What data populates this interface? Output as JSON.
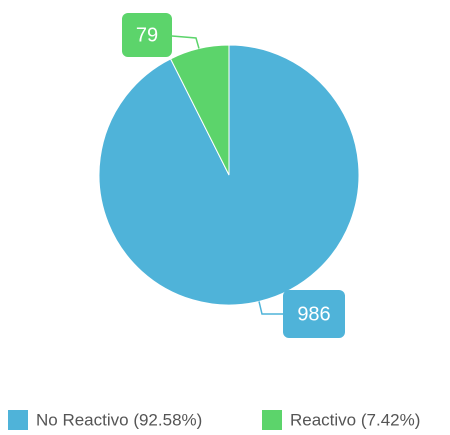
{
  "chart_data": {
    "type": "pie",
    "categories": [
      "No Reactivo (92.58%)",
      "Reactivo (7.42%)"
    ],
    "values": [
      986,
      79
    ],
    "colors": [
      "#4fb3d9",
      "#5cd46b"
    ],
    "legend": "bottom"
  }
}
